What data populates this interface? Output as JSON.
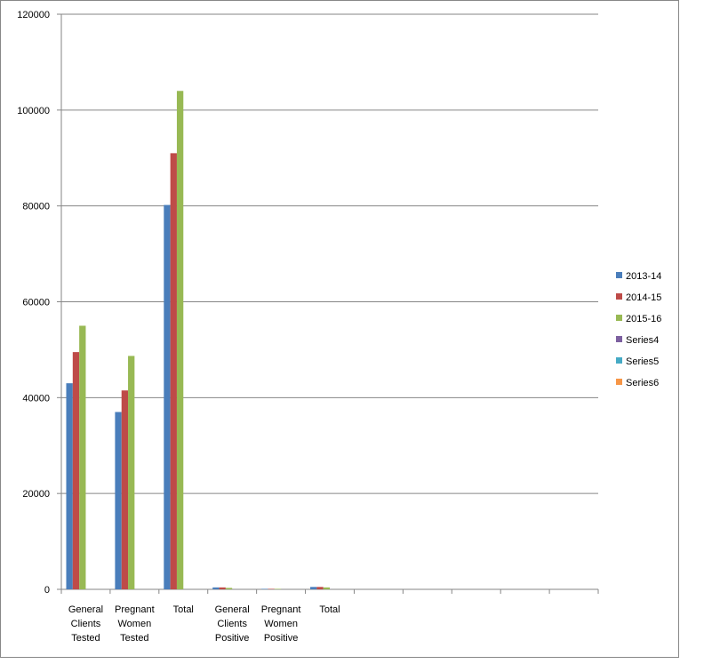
{
  "chart_data": {
    "type": "bar",
    "categories": [
      "General Clients Tested",
      "Pregnant Women Tested",
      "Total",
      "General Clients Positive",
      "Pregnant Women Positive",
      "Total",
      null,
      null,
      null,
      null,
      null
    ],
    "series": [
      {
        "name": "2013-14",
        "color": "#4a7ebb",
        "values": [
          43000,
          37000,
          80200,
          400,
          100,
          500,
          null,
          null,
          null,
          null,
          null
        ]
      },
      {
        "name": "2014-15",
        "color": "#be4b48",
        "values": [
          49500,
          41500,
          91000,
          400,
          100,
          500,
          null,
          null,
          null,
          null,
          null
        ]
      },
      {
        "name": "2015-16",
        "color": "#98b954",
        "values": [
          55000,
          48700,
          104000,
          300,
          100,
          400,
          null,
          null,
          null,
          null,
          null
        ]
      },
      {
        "name": "Series4",
        "color": "#7d60a0",
        "values": [
          null,
          null,
          null,
          null,
          null,
          null,
          null,
          null,
          null,
          null,
          null
        ]
      },
      {
        "name": "Series5",
        "color": "#46aac5",
        "values": [
          null,
          null,
          null,
          null,
          null,
          null,
          null,
          null,
          null,
          null,
          null
        ]
      },
      {
        "name": "Series6",
        "color": "#f79646",
        "values": [
          null,
          null,
          null,
          null,
          null,
          null,
          null,
          null,
          null,
          null,
          null
        ]
      }
    ],
    "ylim": [
      0,
      120000
    ],
    "yticks": [
      0,
      20000,
      40000,
      60000,
      80000,
      100000,
      120000
    ],
    "grid": true,
    "legend": "right"
  }
}
